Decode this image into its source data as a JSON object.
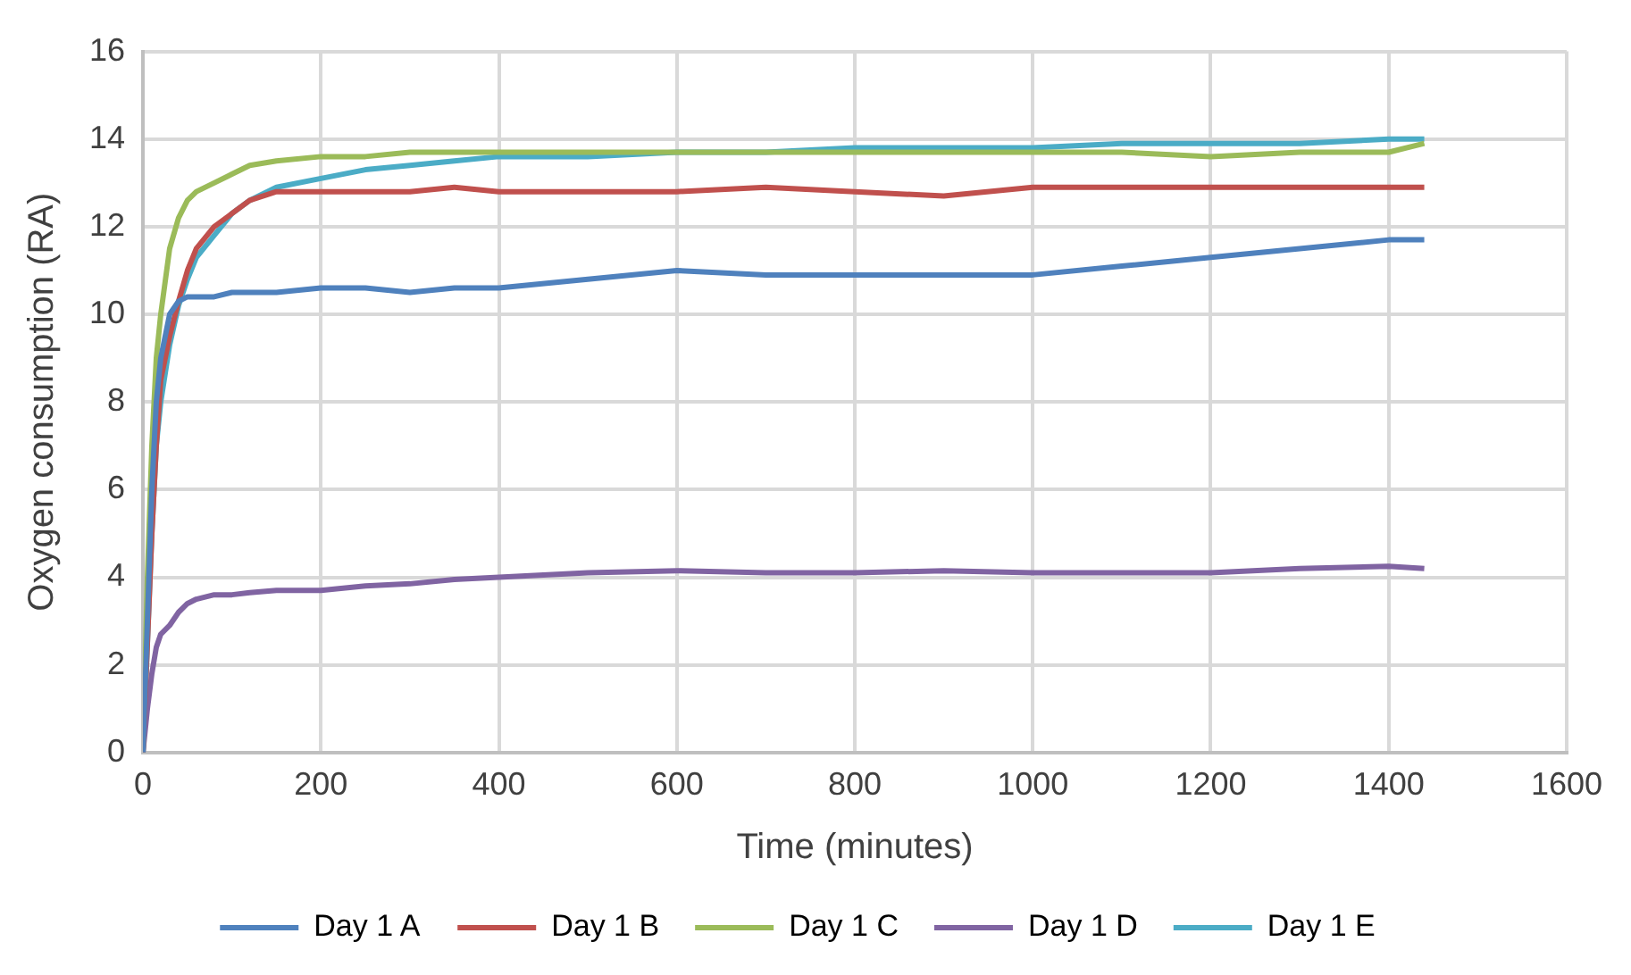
{
  "chart_data": {
    "type": "line",
    "xlabel": "Time (minutes)",
    "ylabel": "Oxygen consumption (RA)",
    "x": [
      0,
      5,
      10,
      15,
      20,
      30,
      40,
      50,
      60,
      80,
      100,
      120,
      150,
      200,
      250,
      300,
      350,
      400,
      500,
      600,
      700,
      800,
      900,
      1000,
      1100,
      1200,
      1300,
      1400,
      1440
    ],
    "series": [
      {
        "name": "Day 1 A",
        "color": "#4f81bd",
        "values": [
          0,
          3,
          6,
          8,
          9,
          10,
          10.3,
          10.4,
          10.4,
          10.4,
          10.5,
          10.5,
          10.5,
          10.6,
          10.6,
          10.5,
          10.6,
          10.6,
          10.8,
          11.0,
          10.9,
          10.9,
          10.9,
          10.9,
          11.1,
          11.3,
          11.5,
          11.7,
          11.7
        ]
      },
      {
        "name": "Day 1 B",
        "color": "#c0504d",
        "values": [
          0,
          2.5,
          5,
          7,
          8.5,
          9.5,
          10.3,
          11,
          11.5,
          12,
          12.3,
          12.6,
          12.8,
          12.8,
          12.8,
          12.8,
          12.9,
          12.8,
          12.8,
          12.8,
          12.9,
          12.8,
          12.7,
          12.9,
          12.9,
          12.9,
          12.9,
          12.9,
          12.9
        ]
      },
      {
        "name": "Day 1 C",
        "color": "#9bbb59",
        "values": [
          0,
          4,
          7,
          9,
          10,
          11.5,
          12.2,
          12.6,
          12.8,
          13,
          13.2,
          13.4,
          13.5,
          13.6,
          13.6,
          13.7,
          13.7,
          13.7,
          13.7,
          13.7,
          13.7,
          13.7,
          13.7,
          13.7,
          13.7,
          13.6,
          13.7,
          13.7,
          13.9
        ]
      },
      {
        "name": "Day 1 D",
        "color": "#8064a2",
        "values": [
          0,
          1,
          1.8,
          2.4,
          2.7,
          2.9,
          3.2,
          3.4,
          3.5,
          3.6,
          3.6,
          3.65,
          3.7,
          3.7,
          3.8,
          3.85,
          3.95,
          4.0,
          4.1,
          4.15,
          4.1,
          4.1,
          4.15,
          4.1,
          4.1,
          4.1,
          4.2,
          4.25,
          4.2
        ]
      },
      {
        "name": "Day 1 E",
        "color": "#4bacc6",
        "values": [
          0,
          2.5,
          5,
          7,
          8,
          9.3,
          10.2,
          10.8,
          11.3,
          11.8,
          12.3,
          12.6,
          12.9,
          13.1,
          13.3,
          13.4,
          13.5,
          13.6,
          13.6,
          13.7,
          13.7,
          13.8,
          13.8,
          13.8,
          13.9,
          13.9,
          13.9,
          14.0,
          14.0
        ]
      }
    ],
    "xlim": [
      0,
      1600
    ],
    "xticks": [
      0,
      200,
      400,
      600,
      800,
      1000,
      1200,
      1400,
      1600
    ],
    "ylim": [
      0,
      16
    ],
    "yticks": [
      0,
      2,
      4,
      6,
      8,
      10,
      12,
      14,
      16
    ],
    "grid": true,
    "legend": "bottom",
    "marker": "none",
    "line_style": "solid"
  }
}
